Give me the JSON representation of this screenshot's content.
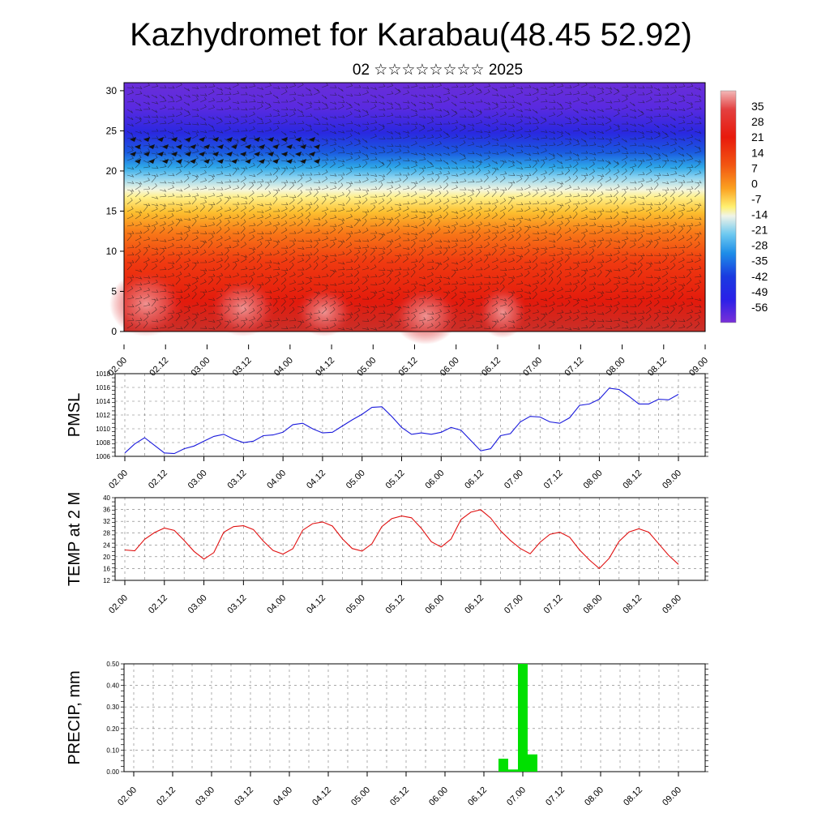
{
  "title": "Kazhydromet for Karabau(48.45 52.92)",
  "subtitle": "02 ☆☆☆☆☆☆☆☆ 2025",
  "time_labels": [
    "02.00",
    "02.12",
    "03.00",
    "03.12",
    "04.00",
    "04.12",
    "05.00",
    "05.12",
    "06.00",
    "06.12",
    "07.00",
    "07.12",
    "08.00",
    "08.12",
    "09.00"
  ],
  "colors": {
    "pmsl_line": "#1a1adc",
    "temp_line": "#e01010",
    "precip_bar": "#00e000"
  },
  "chart_data": [
    {
      "type": "heatmap",
      "name": "vertical-section",
      "ylim": [
        0,
        31
      ],
      "y_ticks": [
        "0",
        "5",
        "10",
        "15",
        "20",
        "25",
        "30"
      ],
      "colorbar_labels": [
        "35",
        "28",
        "21",
        "14",
        "7",
        "0",
        "-7",
        "-14",
        "-21",
        "-28",
        "-35",
        "-42",
        "-49",
        "-56"
      ],
      "colorbar_range": [
        -63,
        42
      ]
    },
    {
      "type": "line",
      "ylabel": "PMSL",
      "ylim": [
        1006,
        1018
      ],
      "y_ticks": [
        "1006",
        "1008",
        "1010",
        "1012",
        "1014",
        "1016",
        "1018"
      ],
      "x": [
        0,
        3,
        6,
        9,
        12,
        15,
        18,
        21,
        24,
        27,
        30,
        33,
        36,
        39,
        42,
        45,
        48,
        51,
        54,
        57,
        60,
        63,
        66,
        69,
        72,
        75,
        78,
        81,
        84,
        87,
        90,
        93,
        96,
        99,
        102,
        105,
        108,
        111,
        114,
        117,
        120,
        123,
        126,
        129,
        132,
        135,
        138,
        141,
        144,
        147,
        150,
        153,
        156,
        159,
        162,
        165,
        168
      ],
      "values": [
        1006.5,
        1007.8,
        1008.7,
        1007.6,
        1006.5,
        1006.4,
        1007.1,
        1007.5,
        1008.2,
        1008.9,
        1009.2,
        1008.5,
        1008,
        1008.2,
        1009,
        1009.1,
        1009.5,
        1010.6,
        1010.8,
        1010,
        1009.4,
        1009.5,
        1010.4,
        1011.3,
        1012.1,
        1013.1,
        1013.2,
        1011.8,
        1010.2,
        1009.2,
        1009.4,
        1009.2,
        1009.5,
        1010.2,
        1009.8,
        1008.3,
        1006.8,
        1007.1,
        1009,
        1009.3,
        1011,
        1011.8,
        1011.7,
        1011,
        1010.8,
        1011.6,
        1013.4,
        1013.6,
        1014.3,
        1015.9,
        1015.7,
        1014.7,
        1013.6,
        1013.6,
        1014.3,
        1014.2,
        1015
      ]
    },
    {
      "type": "line",
      "ylabel": "TEMP at 2 M",
      "ylim": [
        12,
        40
      ],
      "y_ticks": [
        "12",
        "16",
        "20",
        "24",
        "28",
        "32",
        "36",
        "40"
      ],
      "x": [
        0,
        3,
        6,
        9,
        12,
        15,
        18,
        21,
        24,
        27,
        30,
        33,
        36,
        39,
        42,
        45,
        48,
        51,
        54,
        57,
        60,
        63,
        66,
        69,
        72,
        75,
        78,
        81,
        84,
        87,
        90,
        93,
        96,
        99,
        102,
        105,
        108,
        111,
        114,
        117,
        120,
        123,
        126,
        129,
        132,
        135,
        138,
        141,
        144,
        147,
        150,
        153,
        156,
        159,
        162,
        165,
        168
      ],
      "values": [
        22.3,
        22,
        25.9,
        28.2,
        29.7,
        28.9,
        25.5,
        21.8,
        19.2,
        21.4,
        28.3,
        30.2,
        30.5,
        29.2,
        25.3,
        22.1,
        20.9,
        22.7,
        29,
        31.2,
        31.8,
        30.4,
        26.1,
        22.8,
        21.9,
        24.4,
        30.2,
        32.9,
        33.8,
        33.2,
        29.6,
        25.1,
        23.3,
        26,
        32.6,
        35.1,
        35.9,
        33.1,
        28.8,
        25.5,
        22.8,
        21,
        24.9,
        27.6,
        28.3,
        26.6,
        22.3,
        18.9,
        16,
        19.5,
        25.2,
        28.4,
        29.5,
        28.3,
        24.4,
        20.5,
        17.4
      ]
    },
    {
      "type": "bar",
      "ylabel": "PRECIP, mm",
      "ylim": [
        0,
        0.5
      ],
      "y_ticks": [
        "0.00",
        "0.10",
        "0.20",
        "0.30",
        "0.40",
        "0.50"
      ],
      "x": [
        114,
        117,
        120,
        123
      ],
      "values": [
        0.06,
        0.01,
        0.5,
        0.08
      ]
    }
  ]
}
